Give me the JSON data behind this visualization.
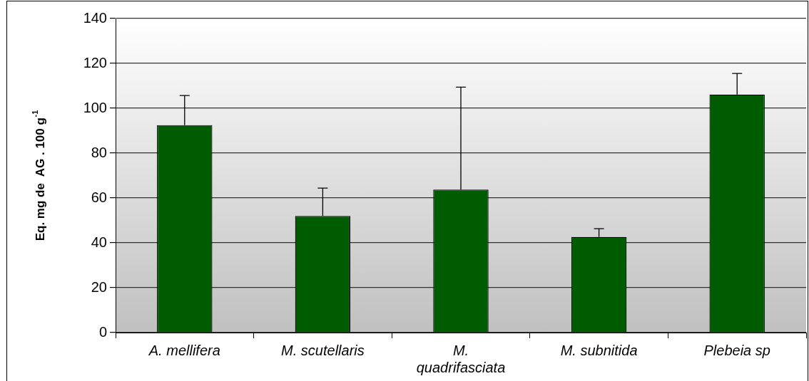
{
  "chart_data": {
    "type": "bar",
    "ylabel": "Eq. mg de  AG . 100 g$^{-1}$",
    "categories": [
      "A. mellifera",
      "M. scutellaris",
      "M. quadrifasciata",
      "M. subnitida",
      "Plebeia sp"
    ],
    "values": [
      92.5,
      52.0,
      63.7,
      42.6,
      106.1
    ],
    "errors": [
      [
        92.5,
        105.7
      ],
      [
        52.0,
        64.4
      ],
      [
        63.7,
        109.4
      ],
      [
        42.6,
        46.3
      ],
      [
        106.1,
        115.5
      ]
    ],
    "color": "#005c00",
    "ylim": [
      0,
      140
    ],
    "yticks": [
      0,
      20,
      40,
      60,
      80,
      100,
      120,
      140
    ],
    "grid": "y",
    "legend": false
  }
}
